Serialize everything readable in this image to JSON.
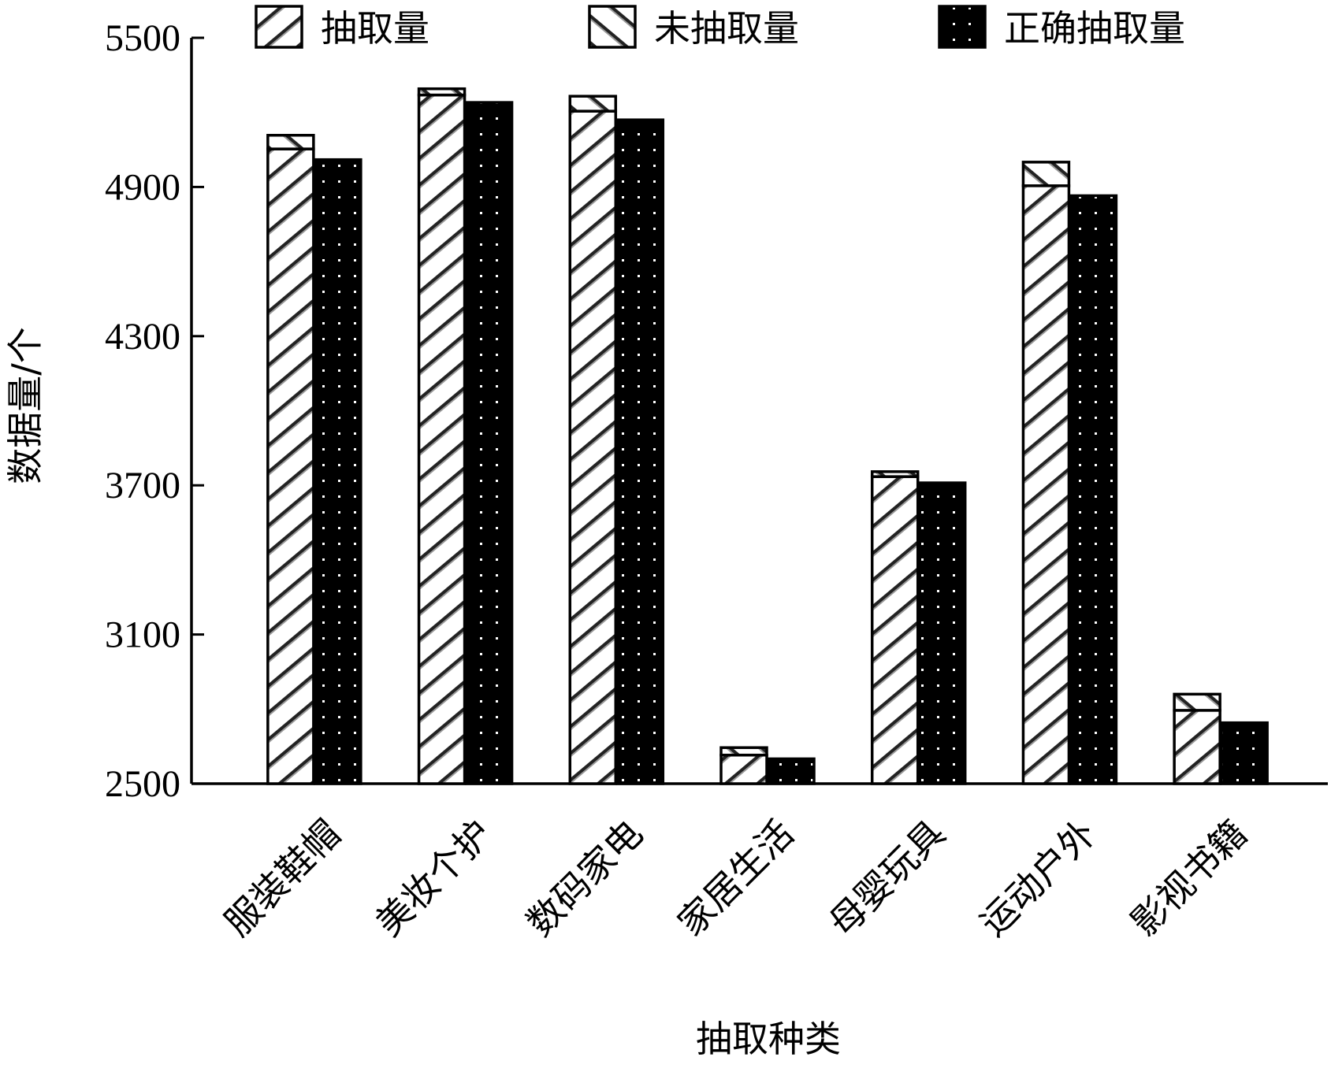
{
  "chart_data": {
    "type": "bar",
    "title": "",
    "xlabel": "抽取种类",
    "ylabel": "数据量/个",
    "ylim": [
      2500,
      5500
    ],
    "yticks": [
      5500,
      4900,
      4300,
      3700,
      3100,
      2500
    ],
    "categories": [
      "服装鞋帽",
      "美妆个护",
      "数码家电",
      "家居生活",
      "母婴玩具",
      "运动户外",
      "影视书籍"
    ],
    "series": [
      {
        "name": "抽取量",
        "values": [
          5053,
          5270,
          5205,
          2615,
          3735,
          4905,
          2795
        ]
      },
      {
        "name": "未抽取量",
        "values": [
          55,
          25,
          60,
          30,
          20,
          95,
          65
        ]
      },
      {
        "name": "正确抽取量",
        "values": [
          5010,
          5240,
          5170,
          2600,
          3710,
          4865,
          2745
        ]
      }
    ],
    "stacked_pairs": "抽取量 + 未抽取量 stacked in first bar; 正确抽取量 in second bar",
    "legend_position": "top",
    "grid": false,
    "colors": {
      "extracted": "#ffffff",
      "correct": "#000000",
      "outline": "#000000"
    }
  }
}
